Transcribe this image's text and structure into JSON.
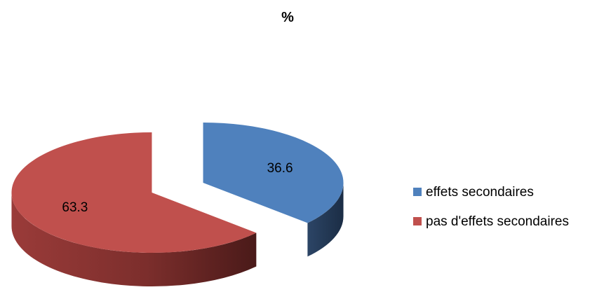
{
  "chart_data": {
    "type": "pie",
    "title": "%",
    "categories": [
      "effets secondaires",
      "pas d'effets secondaires"
    ],
    "values": [
      36.6,
      63.3
    ],
    "data_labels": [
      "36.6",
      "63.3"
    ],
    "colors": {
      "effets secondaires": "#4f81bd",
      "pas d'effets secondaires": "#c0504d"
    },
    "legend_position": "right",
    "style": "3d-exploded"
  }
}
